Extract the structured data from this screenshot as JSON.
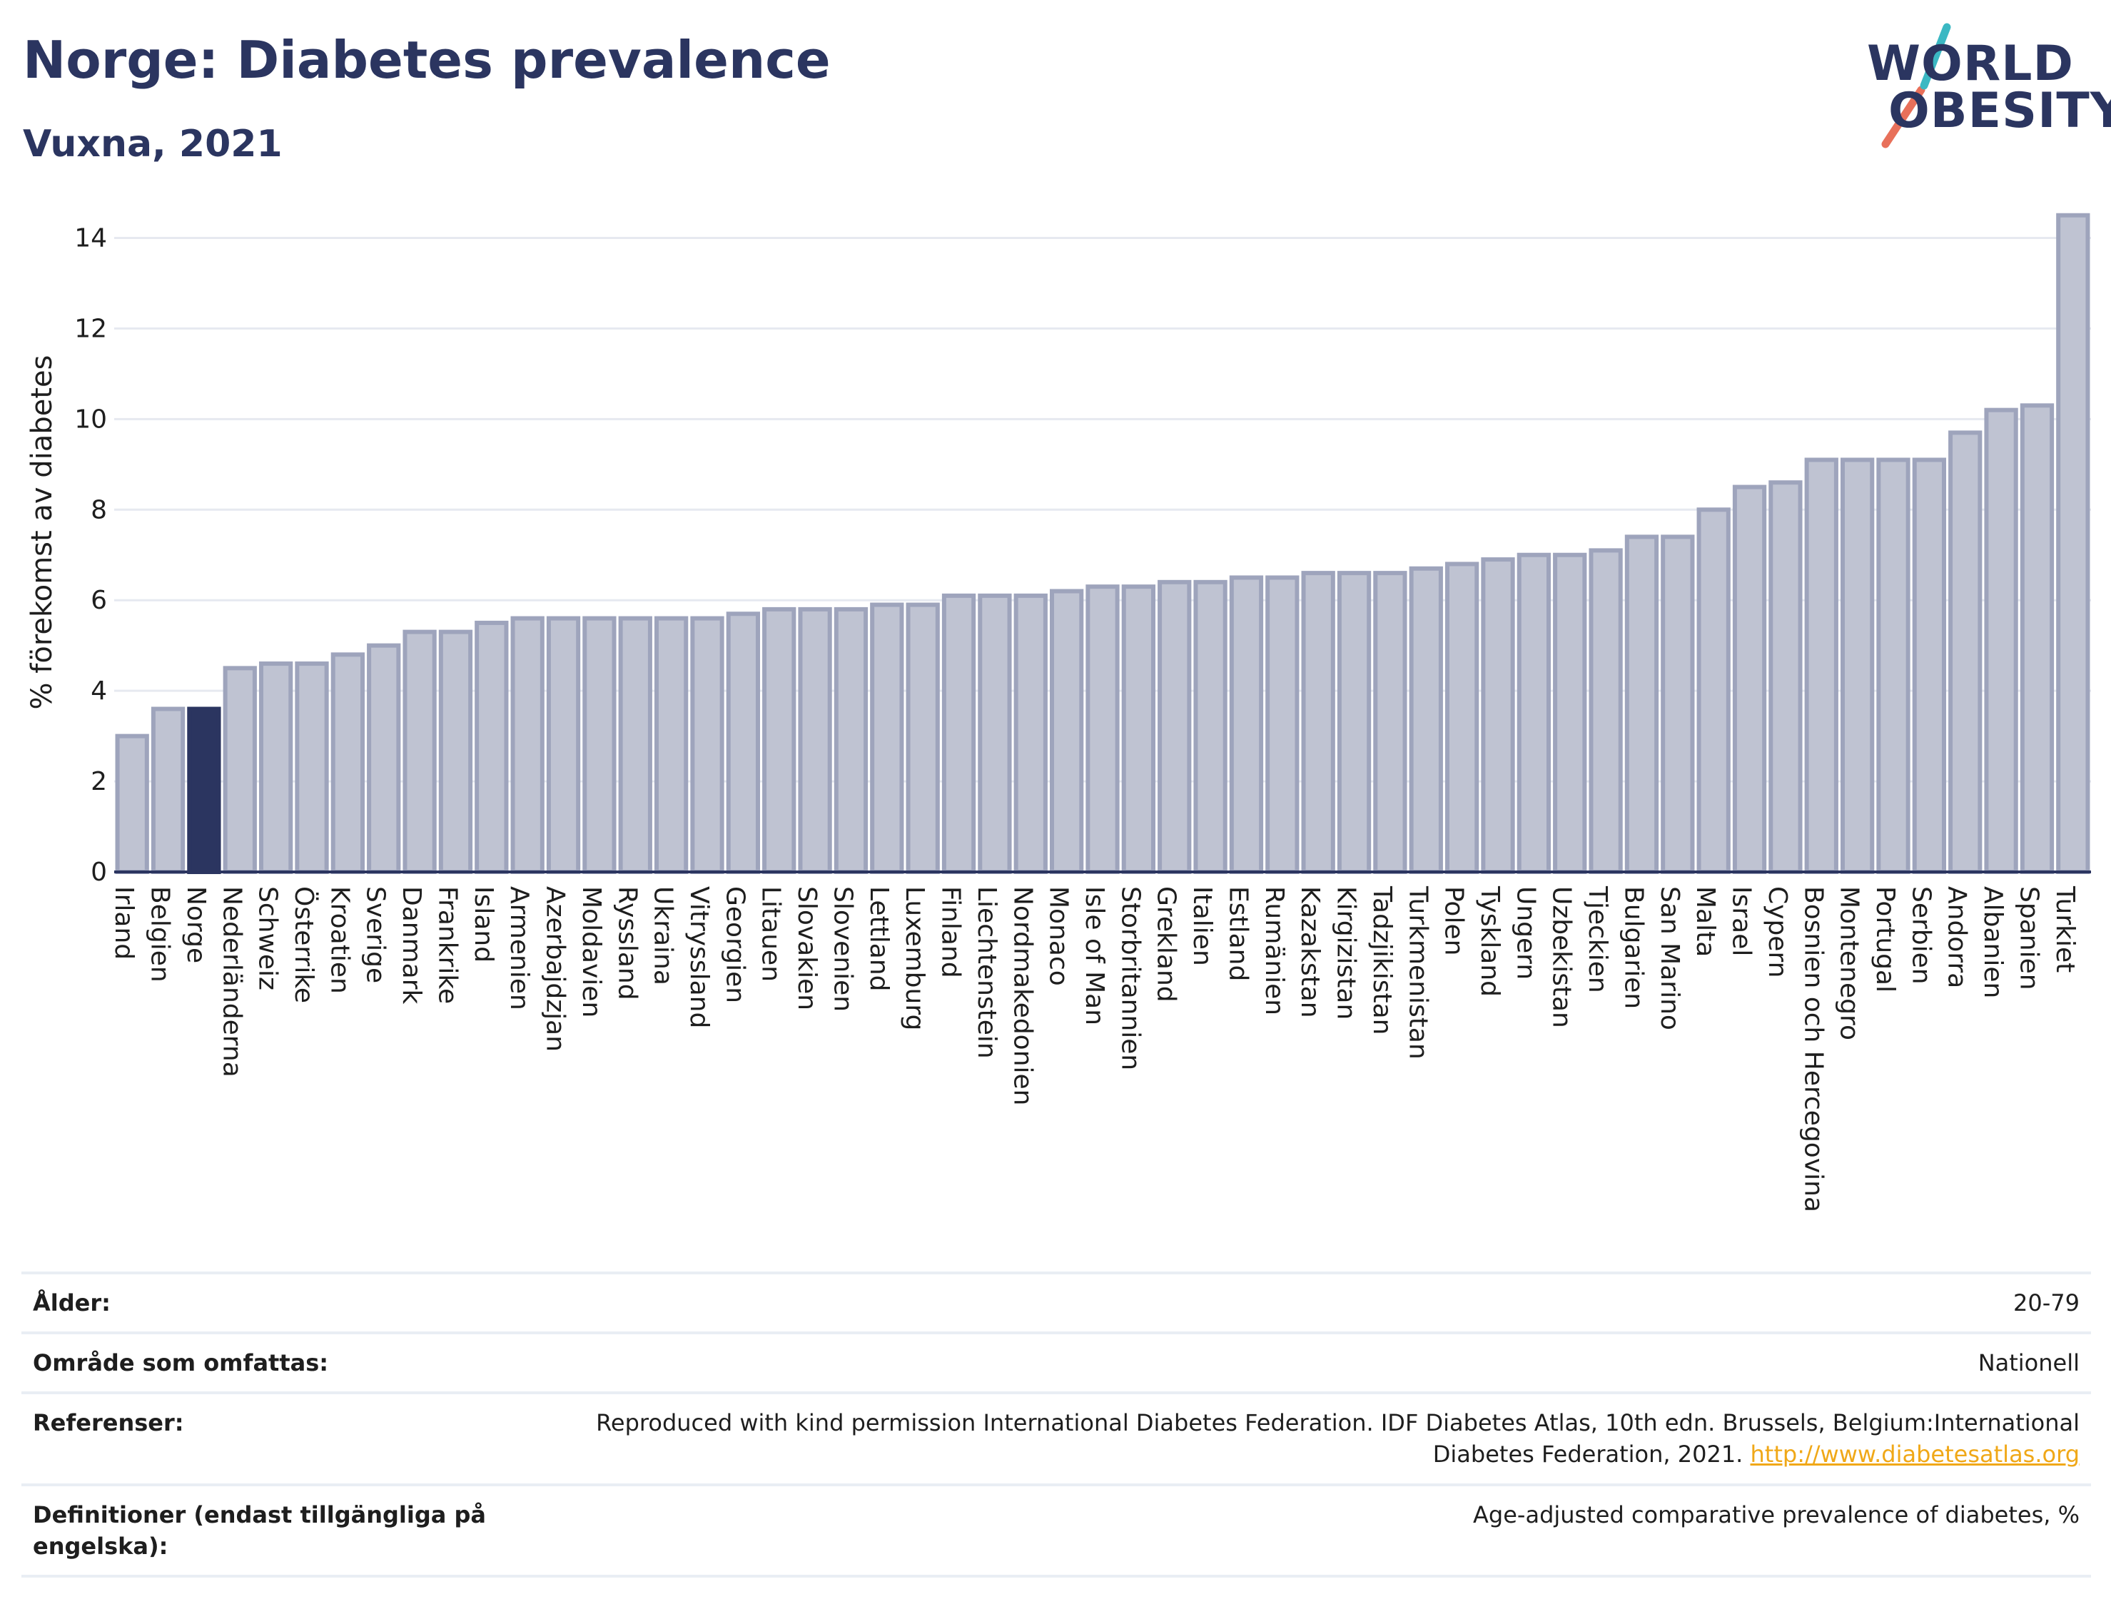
{
  "header": {
    "title": "Norge: Diabetes prevalence",
    "subtitle": "Vuxna, 2021"
  },
  "logo": {
    "line1": "WORLD",
    "line2": "OBESITY"
  },
  "chart_data": {
    "type": "bar",
    "title": "Norge: Diabetes prevalence",
    "subtitle": "Vuxna, 2021",
    "xlabel": "",
    "ylabel": "% förekomst av diabetes",
    "ylim": [
      0,
      15
    ],
    "yticks": [
      0,
      2,
      4,
      6,
      8,
      10,
      12,
      14
    ],
    "grid": true,
    "highlight": "Norge",
    "colors": {
      "bar": "#bfc3d2",
      "bar_stroke": "#9ea4bc",
      "highlight": "#2b3560"
    },
    "categories": [
      "Irland",
      "Belgien",
      "Norge",
      "Nederländerna",
      "Schweiz",
      "Österrike",
      "Kroatien",
      "Sverige",
      "Danmark",
      "Frankrike",
      "Island",
      "Armenien",
      "Azerbajdzjan",
      "Moldavien",
      "Ryssland",
      "Ukraina",
      "Vitryssland",
      "Georgien",
      "Litauen",
      "Slovakien",
      "Slovenien",
      "Lettland",
      "Luxemburg",
      "Finland",
      "Liechtenstein",
      "Nordmakedonien",
      "Monaco",
      "Isle of Man",
      "Storbritannien",
      "Grekland",
      "Italien",
      "Estland",
      "Rumänien",
      "Kazakstan",
      "Kirgizistan",
      "Tadzjikistan",
      "Turkmenistan",
      "Polen",
      "Tyskland",
      "Ungern",
      "Uzbekistan",
      "Tjeckien",
      "Bulgarien",
      "San Marino",
      "Malta",
      "Israel",
      "Cypern",
      "Bosnien och Hercegovina",
      "Montenegro",
      "Portugal",
      "Serbien",
      "Andorra",
      "Albanien",
      "Spanien",
      "Turkiet"
    ],
    "values": [
      3.0,
      3.6,
      3.6,
      4.5,
      4.6,
      4.6,
      4.8,
      5.0,
      5.3,
      5.3,
      5.5,
      5.6,
      5.6,
      5.6,
      5.6,
      5.6,
      5.6,
      5.7,
      5.8,
      5.8,
      5.8,
      5.9,
      5.9,
      6.1,
      6.1,
      6.1,
      6.2,
      6.3,
      6.3,
      6.4,
      6.4,
      6.5,
      6.5,
      6.6,
      6.6,
      6.6,
      6.7,
      6.8,
      6.9,
      7.0,
      7.0,
      7.1,
      7.4,
      7.4,
      8.0,
      8.5,
      8.6,
      9.1,
      9.1,
      9.1,
      9.1,
      9.7,
      10.2,
      10.3,
      14.5
    ]
  },
  "meta": {
    "rows": [
      {
        "label": "Ålder:",
        "value": "20-79"
      },
      {
        "label": "Område som omfattas:",
        "value": "Nationell"
      },
      {
        "label": "Referenser:",
        "value": "Reproduced with kind permission International Diabetes Federation.  IDF Diabetes Atlas, 10th edn. Brussels, Belgium:International Diabetes Federation, 2021. ",
        "link": "http://www.diabetesatlas.org"
      },
      {
        "label": "Definitioner (endast tillgängliga på engelska):",
        "value": "Age-adjusted comparative prevalence of diabetes, %"
      }
    ]
  }
}
